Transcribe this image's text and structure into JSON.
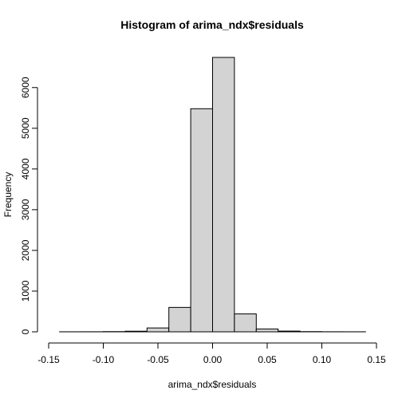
{
  "chart_data": {
    "type": "bar",
    "title": "Histogram of arima_ndx$residuals",
    "xlabel": "arima_ndx$residuals",
    "ylabel": "Frequency",
    "bin_edges": [
      -0.14,
      -0.12,
      -0.1,
      -0.08,
      -0.06,
      -0.04,
      -0.02,
      0.0,
      0.02,
      0.04,
      0.06,
      0.08,
      0.1,
      0.12,
      0.14
    ],
    "values": [
      1,
      2,
      5,
      15,
      95,
      600,
      5480,
      6740,
      440,
      70,
      18,
      5,
      2,
      1
    ],
    "xlim": [
      -0.15,
      0.15
    ],
    "ylim": [
      0,
      6740
    ],
    "x_ticks": [
      -0.15,
      -0.1,
      -0.05,
      0.0,
      0.05,
      0.1,
      0.15
    ],
    "x_tick_labels": [
      "-0.15",
      "-0.10",
      "-0.05",
      "0.00",
      "0.05",
      "0.10",
      "0.15"
    ],
    "y_ticks": [
      0,
      1000,
      2000,
      3000,
      4000,
      5000,
      6000
    ],
    "y_tick_labels": [
      "0",
      "1000",
      "2000",
      "3000",
      "4000",
      "5000",
      "6000"
    ],
    "bar_fill": "#d3d3d3",
    "bar_stroke": "#000000",
    "grid": false,
    "legend": "none"
  }
}
